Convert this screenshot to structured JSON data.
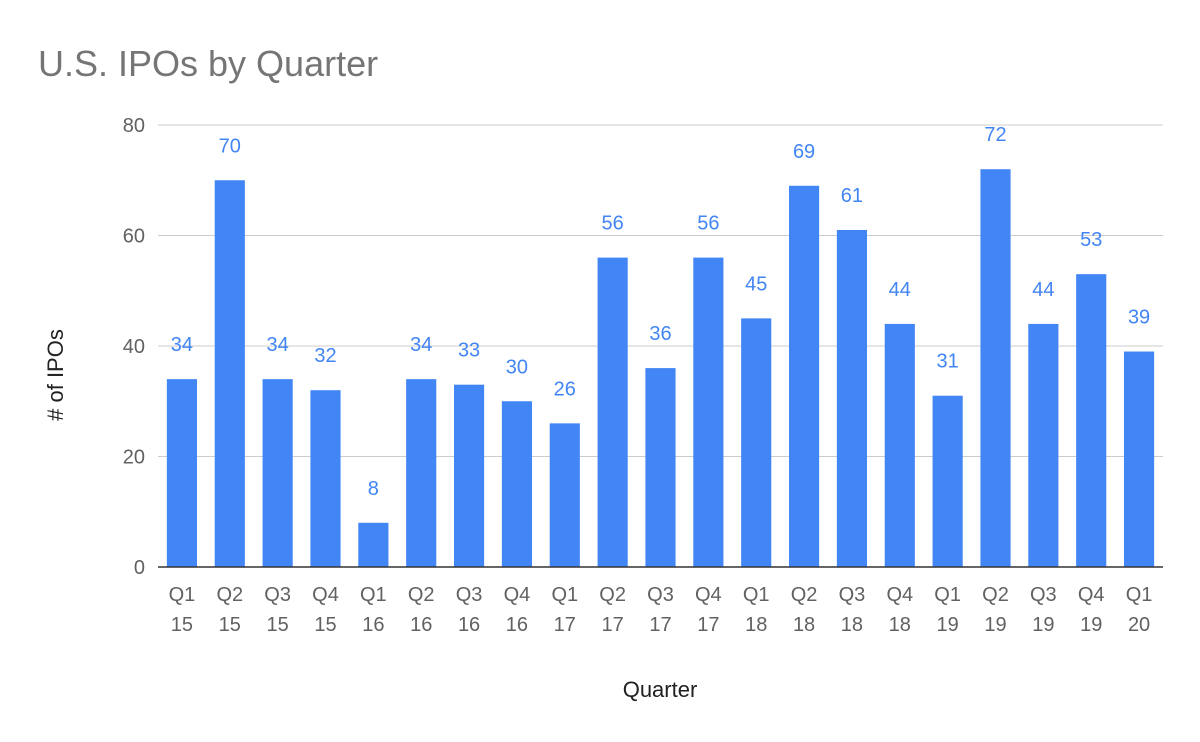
{
  "chart_data": {
    "type": "bar",
    "title": "U.S. IPOs by Quarter",
    "xlabel": "Quarter",
    "ylabel": "# of IPOs",
    "ylim": [
      0,
      80
    ],
    "yticks": [
      0,
      20,
      40,
      60,
      80
    ],
    "grid": true,
    "legend": "none",
    "bar_color": "#4285f4",
    "categories": [
      [
        "Q1",
        "15"
      ],
      [
        "Q2",
        "15"
      ],
      [
        "Q3",
        "15"
      ],
      [
        "Q4",
        "15"
      ],
      [
        "Q1",
        "16"
      ],
      [
        "Q2",
        "16"
      ],
      [
        "Q3",
        "16"
      ],
      [
        "Q4",
        "16"
      ],
      [
        "Q1",
        "17"
      ],
      [
        "Q2",
        "17"
      ],
      [
        "Q3",
        "17"
      ],
      [
        "Q4",
        "17"
      ],
      [
        "Q1",
        "18"
      ],
      [
        "Q2",
        "18"
      ],
      [
        "Q3",
        "18"
      ],
      [
        "Q4",
        "18"
      ],
      [
        "Q1",
        "19"
      ],
      [
        "Q2",
        "19"
      ],
      [
        "Q3",
        "19"
      ],
      [
        "Q4",
        "19"
      ],
      [
        "Q1",
        "20"
      ]
    ],
    "values": [
      34,
      70,
      34,
      32,
      8,
      34,
      33,
      30,
      26,
      56,
      36,
      56,
      45,
      69,
      61,
      44,
      31,
      72,
      44,
      53,
      39
    ],
    "data_labels": [
      "34",
      "70",
      "34",
      "32",
      "8",
      "34",
      "33",
      "30",
      "26",
      "56",
      "36",
      "56",
      "45",
      "69",
      "61",
      "44",
      "31",
      "72",
      "44",
      "53",
      "39"
    ]
  }
}
